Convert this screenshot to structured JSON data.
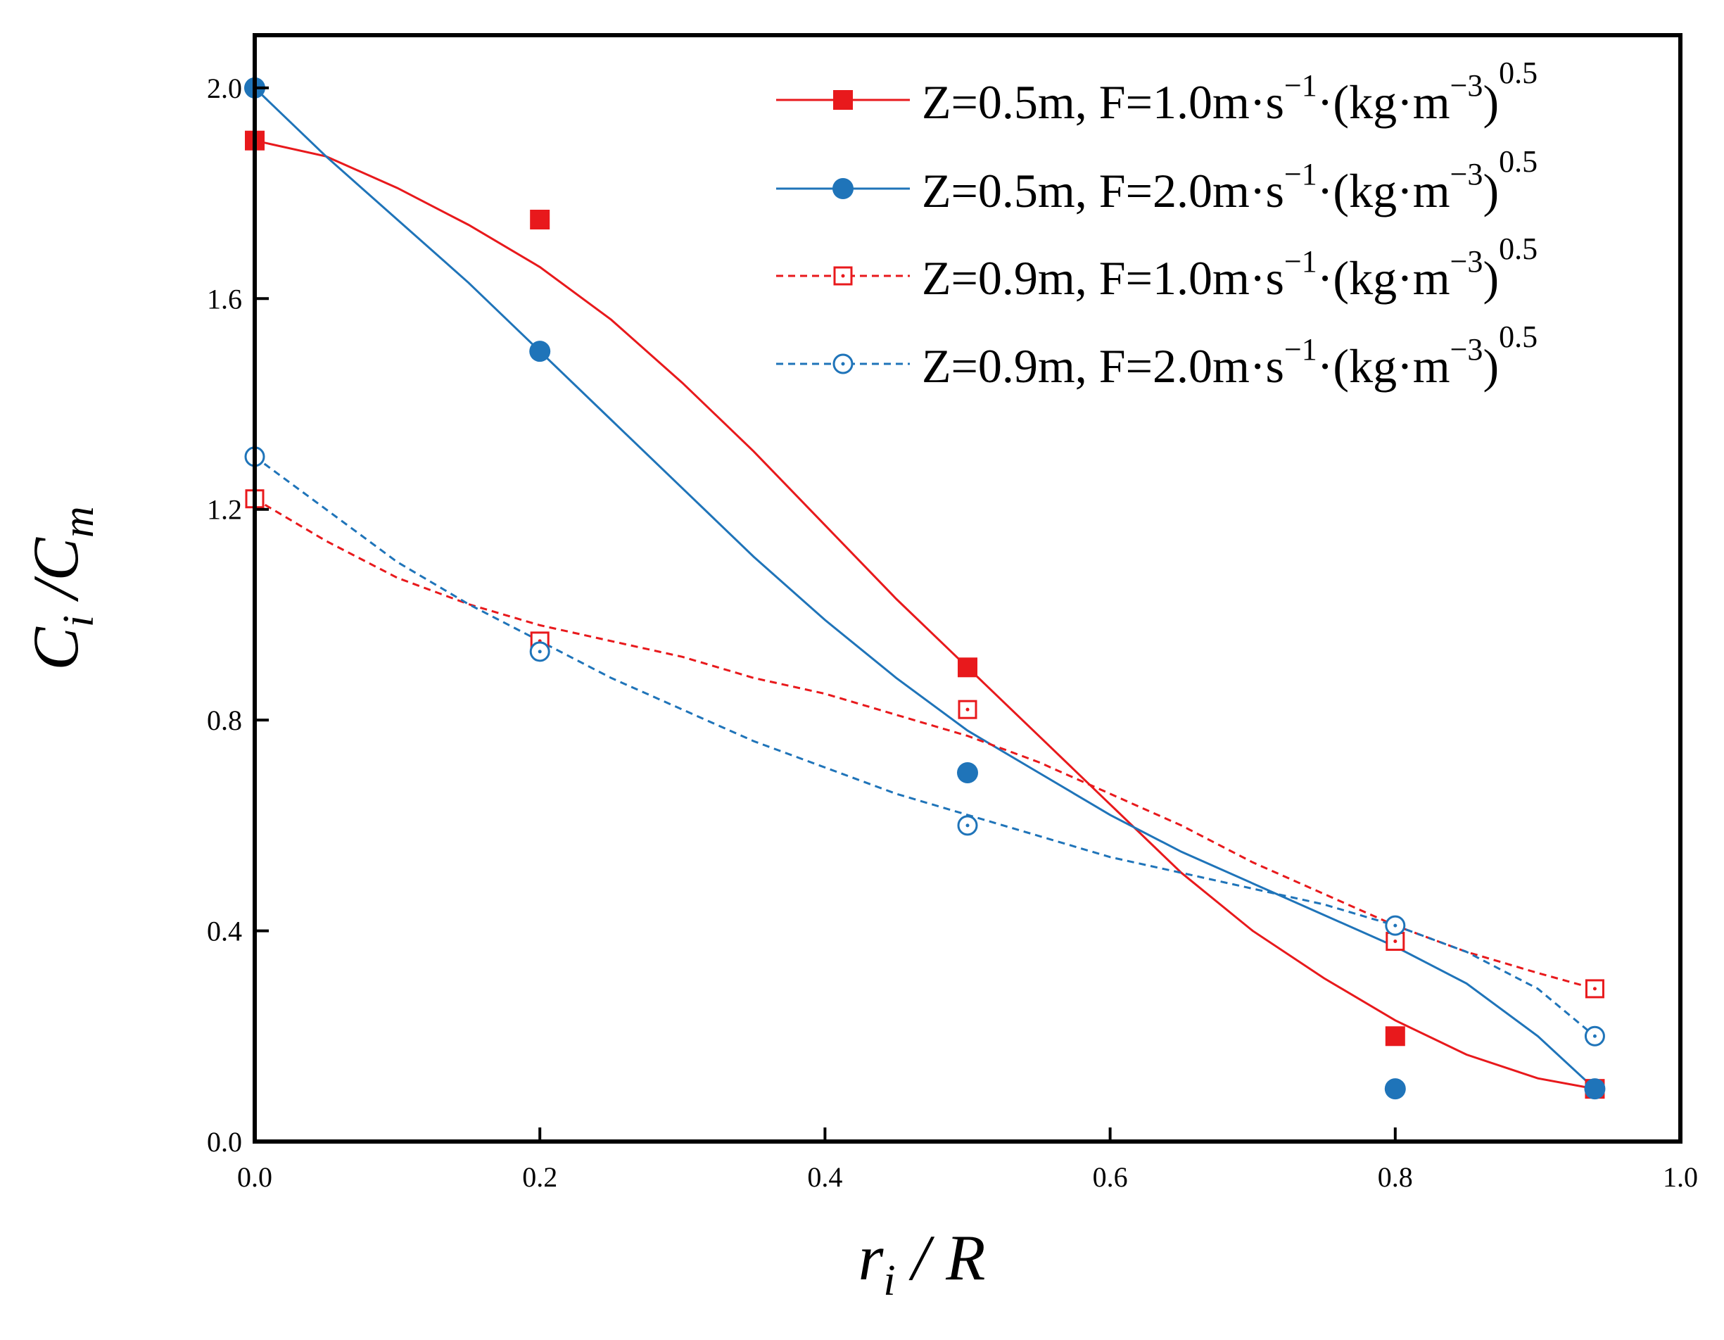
{
  "chart_data": {
    "type": "line",
    "xlabel": {
      "main": "r",
      "sub": "i",
      "rest": " / R"
    },
    "ylabel": {
      "c1": "C",
      "sub1": "i",
      "slash": " /",
      "c2": "C",
      "sub2": "m"
    },
    "xlim": [
      0.0,
      1.0
    ],
    "ylim": [
      0.0,
      2.1
    ],
    "xticks": [
      "0.0",
      "0.2",
      "0.4",
      "0.6",
      "0.8",
      "1.0"
    ],
    "yticks": [
      "0.0",
      "0.4",
      "0.8",
      "1.2",
      "1.6",
      "2.0"
    ],
    "legend_position": "top-right",
    "grid": false,
    "series": [
      {
        "name": "Z=0.5m, F=1.0m·s−1·(kg·m−3)0.5",
        "label_parts": [
          "Z=0.5m, F=1.0m·s",
          "−1",
          "·(kg·m",
          "−3",
          ")",
          "0.5"
        ],
        "color": "#e8191c",
        "marker": "square-filled",
        "line": "solid",
        "x": [
          0.0,
          0.2,
          0.5,
          0.8,
          0.94
        ],
        "values": [
          1.9,
          1.75,
          0.9,
          0.2,
          0.1
        ],
        "fit": [
          [
            0.0,
            1.9
          ],
          [
            0.05,
            1.87
          ],
          [
            0.1,
            1.81
          ],
          [
            0.15,
            1.74
          ],
          [
            0.2,
            1.66
          ],
          [
            0.25,
            1.56
          ],
          [
            0.3,
            1.44
          ],
          [
            0.35,
            1.31
          ],
          [
            0.4,
            1.17
          ],
          [
            0.45,
            1.03
          ],
          [
            0.5,
            0.9
          ],
          [
            0.55,
            0.77
          ],
          [
            0.6,
            0.64
          ],
          [
            0.65,
            0.51
          ],
          [
            0.7,
            0.4
          ],
          [
            0.75,
            0.31
          ],
          [
            0.8,
            0.23
          ],
          [
            0.85,
            0.165
          ],
          [
            0.9,
            0.12
          ],
          [
            0.94,
            0.1
          ]
        ]
      },
      {
        "name": "Z=0.5m, F=2.0m·s−1·(kg·m−3)0.5",
        "label_parts": [
          "Z=0.5m, F=2.0m·s",
          "−1",
          "·(kg·m",
          "−3",
          ")",
          "0.5"
        ],
        "color": "#1f74b9",
        "marker": "circle-filled",
        "line": "solid",
        "x": [
          0.0,
          0.2,
          0.5,
          0.8,
          0.94
        ],
        "values": [
          2.0,
          1.5,
          0.7,
          0.1,
          0.1
        ],
        "fit": [
          [
            0.0,
            2.0
          ],
          [
            0.05,
            1.87
          ],
          [
            0.1,
            1.75
          ],
          [
            0.15,
            1.63
          ],
          [
            0.2,
            1.5
          ],
          [
            0.25,
            1.37
          ],
          [
            0.3,
            1.24
          ],
          [
            0.35,
            1.11
          ],
          [
            0.4,
            0.99
          ],
          [
            0.45,
            0.88
          ],
          [
            0.5,
            0.78
          ],
          [
            0.55,
            0.7
          ],
          [
            0.6,
            0.62
          ],
          [
            0.65,
            0.55
          ],
          [
            0.7,
            0.49
          ],
          [
            0.75,
            0.43
          ],
          [
            0.8,
            0.37
          ],
          [
            0.85,
            0.3
          ],
          [
            0.9,
            0.2
          ],
          [
            0.94,
            0.1
          ]
        ]
      },
      {
        "name": "Z=0.9m, F=1.0m·s−1·(kg·m−3)0.5",
        "label_parts": [
          "Z=0.9m, F=1.0m·s",
          "−1",
          "·(kg·m",
          "−3",
          ")",
          "0.5"
        ],
        "color": "#e8191c",
        "marker": "square-open-dot",
        "line": "dashed",
        "x": [
          0.0,
          0.2,
          0.5,
          0.8,
          0.94
        ],
        "values": [
          1.22,
          0.95,
          0.82,
          0.38,
          0.29
        ],
        "fit": [
          [
            0.0,
            1.22
          ],
          [
            0.05,
            1.14
          ],
          [
            0.1,
            1.07
          ],
          [
            0.15,
            1.02
          ],
          [
            0.2,
            0.98
          ],
          [
            0.25,
            0.95
          ],
          [
            0.3,
            0.92
          ],
          [
            0.35,
            0.88
          ],
          [
            0.4,
            0.85
          ],
          [
            0.45,
            0.81
          ],
          [
            0.5,
            0.77
          ],
          [
            0.55,
            0.72
          ],
          [
            0.6,
            0.66
          ],
          [
            0.65,
            0.6
          ],
          [
            0.7,
            0.53
          ],
          [
            0.75,
            0.47
          ],
          [
            0.8,
            0.41
          ],
          [
            0.85,
            0.36
          ],
          [
            0.9,
            0.32
          ],
          [
            0.94,
            0.29
          ]
        ]
      },
      {
        "name": "Z=0.9m, F=2.0m·s−1·(kg·m−3)0.5",
        "label_parts": [
          "Z=0.9m, F=2.0m·s",
          "−1",
          "·(kg·m",
          "−3",
          ")",
          "0.5"
        ],
        "color": "#1f74b9",
        "marker": "circle-open-dot",
        "line": "dashed",
        "x": [
          0.0,
          0.2,
          0.5,
          0.8,
          0.94
        ],
        "values": [
          1.3,
          0.93,
          0.6,
          0.41,
          0.2
        ],
        "fit": [
          [
            0.0,
            1.3
          ],
          [
            0.05,
            1.2
          ],
          [
            0.1,
            1.1
          ],
          [
            0.15,
            1.02
          ],
          [
            0.2,
            0.95
          ],
          [
            0.25,
            0.88
          ],
          [
            0.3,
            0.82
          ],
          [
            0.35,
            0.76
          ],
          [
            0.4,
            0.71
          ],
          [
            0.45,
            0.66
          ],
          [
            0.5,
            0.62
          ],
          [
            0.55,
            0.58
          ],
          [
            0.6,
            0.54
          ],
          [
            0.65,
            0.51
          ],
          [
            0.7,
            0.48
          ],
          [
            0.75,
            0.45
          ],
          [
            0.8,
            0.41
          ],
          [
            0.85,
            0.36
          ],
          [
            0.9,
            0.29
          ],
          [
            0.94,
            0.2
          ]
        ]
      }
    ]
  }
}
